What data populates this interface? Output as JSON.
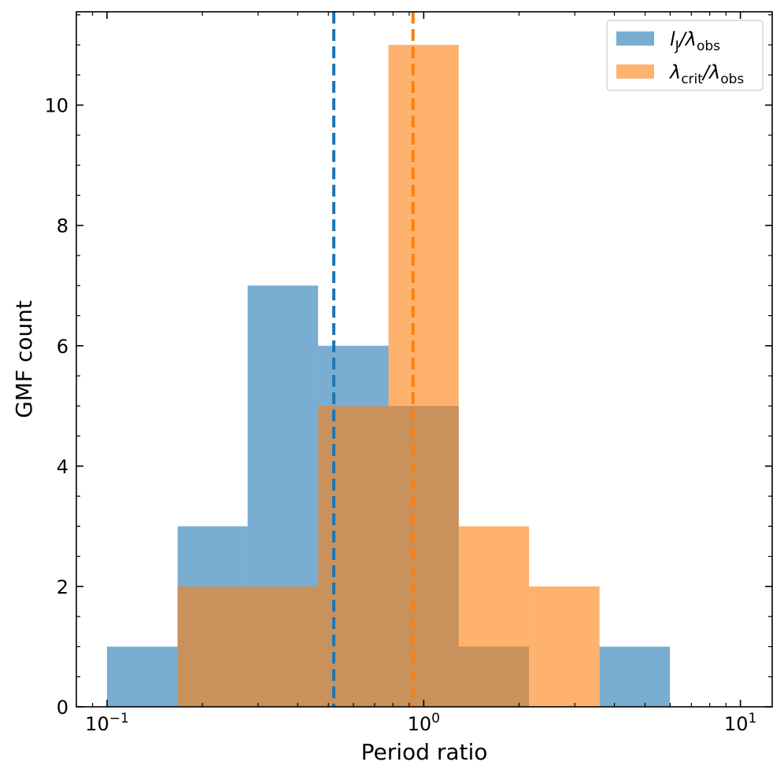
{
  "chart_data": {
    "type": "bar",
    "title": "",
    "xlabel": "Period ratio",
    "ylabel": "GMF count",
    "xscale": "log",
    "xlim": [
      0.08,
      12.6
    ],
    "ylim": [
      0,
      11.55
    ],
    "yticks": [
      0,
      2,
      4,
      6,
      8,
      10
    ],
    "xticks": [
      {
        "value": 0.1,
        "base": "10",
        "exp": "−1"
      },
      {
        "value": 1,
        "base": "10",
        "exp": "0"
      },
      {
        "value": 10,
        "base": "10",
        "exp": "1"
      }
    ],
    "bin_edges": [
      0.1,
      0.167,
      0.278,
      0.464,
      0.774,
      1.29,
      2.15,
      3.59,
      5.99
    ],
    "series": [
      {
        "name": "l_J/λ_obs",
        "legend_main": "l",
        "legend_sub1": "J",
        "legend_rest": "/λ",
        "legend_sub2": "obs",
        "color": "#1f77b4",
        "alpha": 0.6,
        "values": [
          1,
          3,
          7,
          6,
          5,
          1,
          0,
          1
        ],
        "median": 0.52
      },
      {
        "name": "λ_crit/λ_obs",
        "legend_main": "λ",
        "legend_sub1": "crit",
        "legend_rest": "/λ",
        "legend_sub2": "obs",
        "color": "#ff7f0e",
        "alpha": 0.6,
        "values": [
          0,
          2,
          2,
          5,
          11,
          3,
          2,
          0
        ],
        "median": 0.925
      }
    ],
    "legend_position": "top-right"
  }
}
